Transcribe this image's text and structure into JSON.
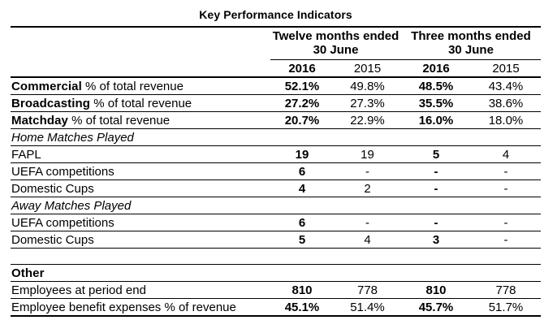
{
  "page_title": "Key Performance Indicators",
  "table": {
    "col_groups": [
      {
        "line1": "Twelve months ended",
        "line2": "30 June"
      },
      {
        "line1": "Three months ended",
        "line2": "30 June"
      }
    ],
    "years": [
      "2016",
      "2015",
      "2016",
      "2015"
    ],
    "rows": [
      {
        "label_strong": "Commercial",
        "label": " % of total revenue",
        "style": "",
        "values": [
          "52.1%",
          "49.8%",
          "48.5%",
          "43.4%"
        ]
      },
      {
        "label_strong": "Broadcasting",
        "label": " % of total revenue",
        "style": "",
        "values": [
          "27.2%",
          "27.3%",
          "35.5%",
          "38.6%"
        ]
      },
      {
        "label_strong": "Matchday",
        "label": " % of total revenue",
        "style": "",
        "values": [
          "20.7%",
          "22.9%",
          "16.0%",
          "18.0%"
        ]
      },
      {
        "label_strong": "",
        "label": "Home Matches Played",
        "style": "italic",
        "values": [
          "",
          "",
          "",
          ""
        ]
      },
      {
        "label_strong": "",
        "label": "FAPL",
        "style": "",
        "values": [
          "19",
          "19",
          "5",
          "4"
        ]
      },
      {
        "label_strong": "",
        "label": "UEFA competitions",
        "style": "",
        "values": [
          "6",
          "-",
          "-",
          "-"
        ]
      },
      {
        "label_strong": "",
        "label": "Domestic Cups",
        "style": "",
        "values": [
          "4",
          "2",
          "-",
          "-"
        ]
      },
      {
        "label_strong": "",
        "label": "Away Matches Played",
        "style": "italic",
        "values": [
          "",
          "",
          "",
          ""
        ]
      },
      {
        "label_strong": "",
        "label": "UEFA competitions",
        "style": "",
        "values": [
          "6",
          "-",
          "-",
          "-"
        ]
      },
      {
        "label_strong": "",
        "label": "Domestic Cups",
        "style": "",
        "values": [
          "5",
          "4",
          "3",
          "-"
        ]
      },
      {
        "label_strong": "",
        "label": "",
        "style": "spacer",
        "values": [
          "",
          "",
          "",
          ""
        ]
      },
      {
        "label_strong": "Other",
        "label": "",
        "style": "",
        "values": [
          "",
          "",
          "",
          ""
        ]
      },
      {
        "label_strong": "",
        "label": "Employees at period end",
        "style": "",
        "values": [
          "810",
          "778",
          "810",
          "778"
        ]
      },
      {
        "label_strong": "",
        "label": "Employee benefit expenses % of revenue",
        "style": "",
        "values": [
          "45.1%",
          "51.4%",
          "45.7%",
          "51.7%"
        ]
      }
    ]
  }
}
